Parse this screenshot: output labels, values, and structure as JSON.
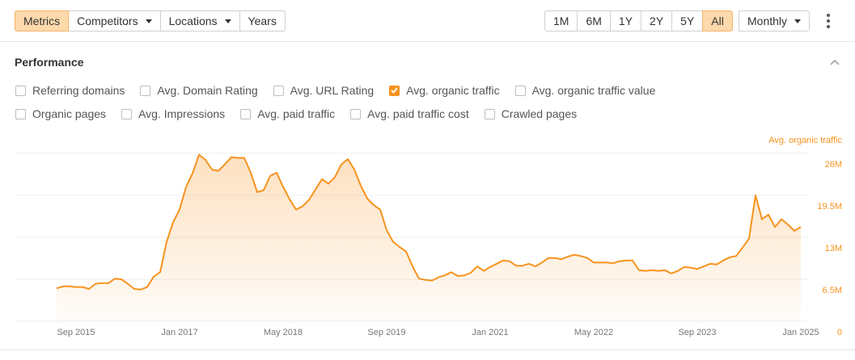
{
  "toolbar": {
    "tabs": [
      {
        "label": "Metrics",
        "active": true
      },
      {
        "label": "Competitors",
        "dropdown": true
      },
      {
        "label": "Locations",
        "dropdown": true
      },
      {
        "label": "Years"
      }
    ],
    "ranges": [
      {
        "label": "1M"
      },
      {
        "label": "6M"
      },
      {
        "label": "1Y"
      },
      {
        "label": "2Y"
      },
      {
        "label": "5Y"
      },
      {
        "label": "All",
        "active": true
      }
    ],
    "interval": {
      "label": "Monthly",
      "dropdown": true
    }
  },
  "section": {
    "title": "Performance",
    "metrics": [
      {
        "label": "Referring domains",
        "checked": false
      },
      {
        "label": "Avg. Domain Rating",
        "checked": false
      },
      {
        "label": "Avg. URL Rating",
        "checked": false
      },
      {
        "label": "Avg. organic traffic",
        "checked": true
      },
      {
        "label": "Avg. organic traffic value",
        "checked": false
      },
      {
        "label": "Organic pages",
        "checked": false
      },
      {
        "label": "Avg. Impressions",
        "checked": false
      },
      {
        "label": "Avg. paid traffic",
        "checked": false
      },
      {
        "label": "Avg. paid traffic cost",
        "checked": false
      },
      {
        "label": "Crawled pages",
        "checked": false
      }
    ]
  },
  "chart_data": {
    "type": "area",
    "y_label": "Avg. organic traffic",
    "x": [
      "2015-06",
      "2015-07",
      "2015-08",
      "2015-09",
      "2015-10",
      "2015-11",
      "2015-12",
      "2016-01",
      "2016-02",
      "2016-03",
      "2016-04",
      "2016-05",
      "2016-06",
      "2016-07",
      "2016-08",
      "2016-09",
      "2016-10",
      "2016-11",
      "2016-12",
      "2017-01",
      "2017-02",
      "2017-03",
      "2017-04",
      "2017-05",
      "2017-06",
      "2017-07",
      "2017-08",
      "2017-09",
      "2017-10",
      "2017-11",
      "2017-12",
      "2018-01",
      "2018-02",
      "2018-03",
      "2018-04",
      "2018-05",
      "2018-06",
      "2018-07",
      "2018-08",
      "2018-09",
      "2018-10",
      "2018-11",
      "2018-12",
      "2019-01",
      "2019-02",
      "2019-03",
      "2019-04",
      "2019-05",
      "2019-06",
      "2019-07",
      "2019-08",
      "2019-09",
      "2019-10",
      "2019-11",
      "2019-12",
      "2020-01",
      "2020-02",
      "2020-03",
      "2020-04",
      "2020-05",
      "2020-06",
      "2020-07",
      "2020-08",
      "2020-09",
      "2020-10",
      "2020-11",
      "2020-12",
      "2021-01",
      "2021-02",
      "2021-03",
      "2021-04",
      "2021-05",
      "2021-06",
      "2021-07",
      "2021-08",
      "2021-09",
      "2021-10",
      "2021-11",
      "2021-12",
      "2022-01",
      "2022-02",
      "2022-03",
      "2022-04",
      "2022-05",
      "2022-06",
      "2022-07",
      "2022-08",
      "2022-09",
      "2022-10",
      "2022-11",
      "2022-12",
      "2023-01",
      "2023-02",
      "2023-03",
      "2023-04",
      "2023-05",
      "2023-06",
      "2023-07",
      "2023-08",
      "2023-09",
      "2023-10",
      "2023-11",
      "2023-12",
      "2024-01",
      "2024-02",
      "2024-03",
      "2024-04",
      "2024-05",
      "2024-06",
      "2024-07",
      "2024-08",
      "2024-09",
      "2024-10",
      "2024-11",
      "2024-12",
      "2025-01"
    ],
    "series": [
      {
        "name": "Avg. organic traffic",
        "color": "#f7931e",
        "values": [
          5100000,
          5400000,
          5400000,
          5300000,
          5300000,
          5000000,
          5800000,
          5900000,
          5900000,
          6600000,
          6500000,
          5800000,
          5000000,
          4900000,
          5300000,
          6900000,
          7600000,
          12300000,
          15300000,
          17300000,
          20800000,
          22900000,
          25800000,
          25000000,
          23500000,
          23300000,
          24300000,
          25400000,
          25300000,
          25300000,
          23000000,
          20000000,
          20300000,
          22500000,
          23000000,
          20800000,
          18900000,
          17300000,
          17800000,
          18800000,
          20400000,
          22000000,
          21300000,
          22300000,
          24300000,
          25100000,
          23500000,
          21000000,
          19000000,
          18000000,
          17300000,
          14100000,
          12300000,
          11500000,
          10800000,
          8500000,
          6600000,
          6400000,
          6300000,
          6800000,
          7100000,
          7600000,
          7000000,
          7100000,
          7500000,
          8500000,
          7800000,
          8400000,
          8900000,
          9400000,
          9300000,
          8600000,
          8600000,
          8900000,
          8500000,
          9100000,
          9800000,
          9800000,
          9600000,
          10000000,
          10300000,
          10100000,
          9800000,
          9100000,
          9100000,
          9100000,
          9000000,
          9300000,
          9400000,
          9400000,
          7900000,
          7800000,
          7900000,
          7800000,
          7900000,
          7400000,
          7800000,
          8400000,
          8300000,
          8100000,
          8500000,
          8900000,
          8800000,
          9400000,
          9900000,
          10100000,
          11400000,
          12800000,
          19500000,
          15800000,
          16500000,
          14600000,
          15800000,
          15000000,
          14000000,
          14600000
        ]
      }
    ],
    "xlim": [
      "2015-06",
      "2025-01"
    ],
    "xticks": [
      {
        "value": "2015-09",
        "label": "Sep 2015"
      },
      {
        "value": "2017-01",
        "label": "Jan 2017"
      },
      {
        "value": "2018-05",
        "label": "May 2018"
      },
      {
        "value": "2019-09",
        "label": "Sep 2019"
      },
      {
        "value": "2021-01",
        "label": "Jan 2021"
      },
      {
        "value": "2022-05",
        "label": "May 2022"
      },
      {
        "value": "2023-09",
        "label": "Sep 2023"
      },
      {
        "value": "2025-01",
        "label": "Jan 2025"
      }
    ],
    "ylim": [
      0,
      26000000
    ],
    "yticks": [
      0,
      {
        "value": 6500000,
        "label": "6.5M"
      },
      {
        "value": 13000000,
        "label": "13M"
      },
      {
        "value": 19500000,
        "label": "19.5M"
      },
      {
        "value": 26000000,
        "label": "26M"
      }
    ],
    "grid": true
  }
}
